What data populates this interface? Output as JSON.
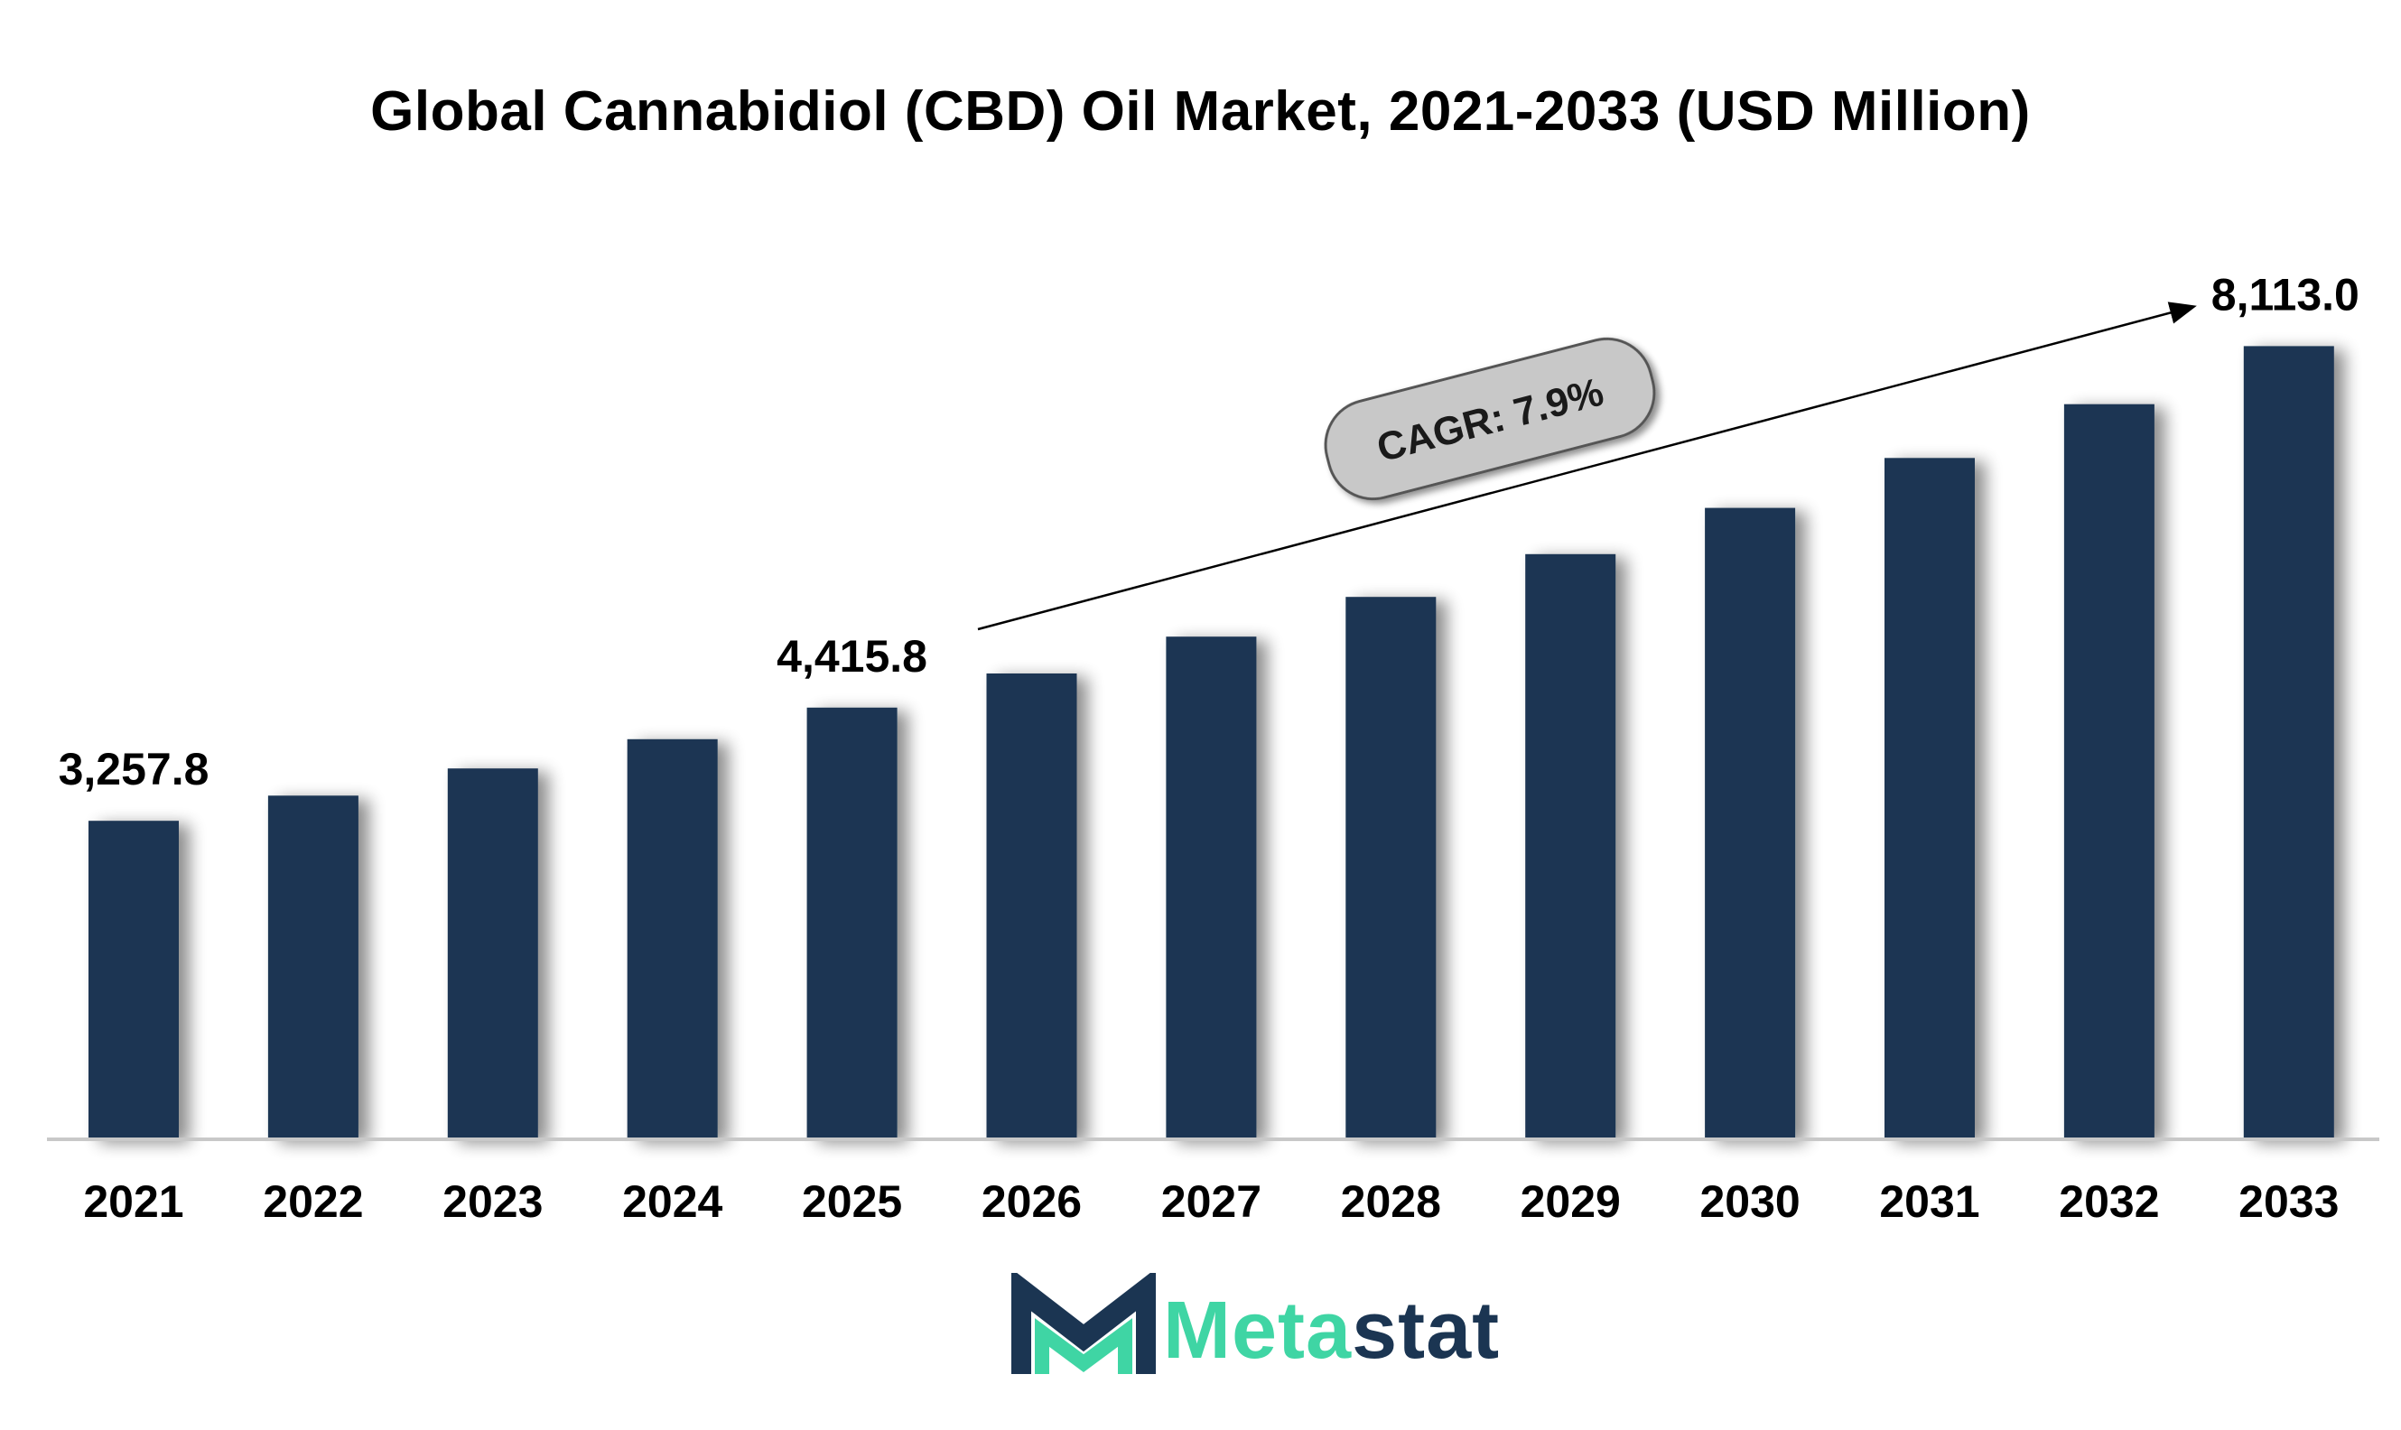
{
  "chart_data": {
    "type": "bar",
    "title": "Global Cannabidiol (CBD) Oil Market, 2021-2033 (USD Million)",
    "xlabel": "",
    "ylabel": "",
    "categories": [
      "2021",
      "2022",
      "2023",
      "2024",
      "2025",
      "2026",
      "2027",
      "2028",
      "2029",
      "2030",
      "2031",
      "2032",
      "2033"
    ],
    "values": [
      3257.8,
      3515.2,
      3793.0,
      4092.6,
      4415.8,
      4764.6,
      5141.0,
      5547.2,
      5985.4,
      6458.3,
      6968.5,
      7519.0,
      8113.0
    ],
    "data_labels": [
      {
        "index": 0,
        "text": "3,257.8"
      },
      {
        "index": 4,
        "text": "4,415.8"
      },
      {
        "index": 12,
        "text": "8,113.0"
      }
    ],
    "annotation": {
      "text": "CAGR: 7.9%"
    },
    "ylim": [
      0,
      8600
    ],
    "grid": false,
    "legend": "none",
    "colors": {
      "bar": "#1b3552",
      "annotation_fill": "#c8c8c8",
      "annotation_border": "#555555"
    }
  },
  "logo": {
    "part1": "Meta",
    "part2": "stat",
    "accent": "#3fd5a4",
    "dark": "#1b3552"
  }
}
